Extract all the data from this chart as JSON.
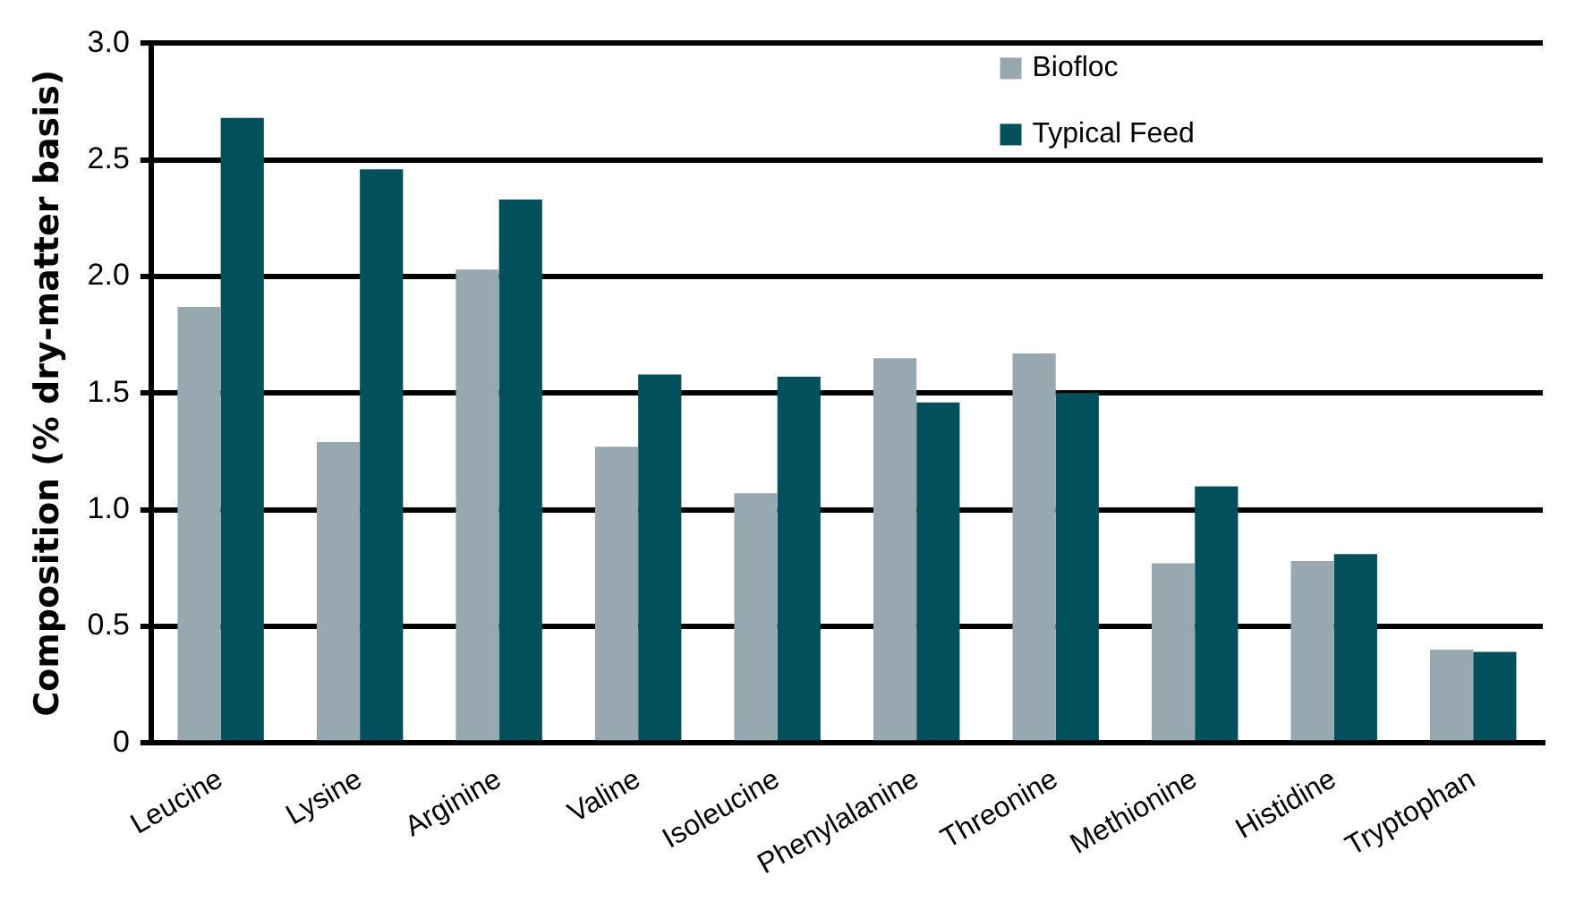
{
  "chart_data": {
    "type": "bar",
    "ylabel": "Composition (% dry-matter basis)",
    "categories": [
      "Leucine",
      "Lysine",
      "Arginine",
      "Valine",
      "Isoleucine",
      "Phenylalanine",
      "Threonine",
      "Methionine",
      "Histidine",
      "Tryptophan"
    ],
    "series": [
      {
        "name": "Biofloc",
        "color": "#98a8b1",
        "values": [
          1.87,
          1.29,
          2.03,
          1.27,
          1.07,
          1.65,
          1.67,
          0.77,
          0.78,
          0.4
        ]
      },
      {
        "name": "Typical Feed",
        "color": "#02505c",
        "values": [
          2.68,
          2.46,
          2.33,
          1.58,
          1.57,
          1.46,
          1.5,
          1.1,
          0.81,
          0.39
        ]
      }
    ],
    "ylim": [
      0,
      3
    ],
    "yticks": [
      0,
      {
        "value": 0.5,
        "label": "0.5"
      },
      {
        "value": 1,
        "label": "1.0"
      },
      {
        "value": 1.5,
        "label": "1.5"
      },
      {
        "value": 2,
        "label": "2.0"
      },
      {
        "value": 2.5,
        "label": "2.5"
      },
      {
        "value": 3,
        "label": "3.0"
      }
    ],
    "grid": "y",
    "legend": "top right"
  }
}
